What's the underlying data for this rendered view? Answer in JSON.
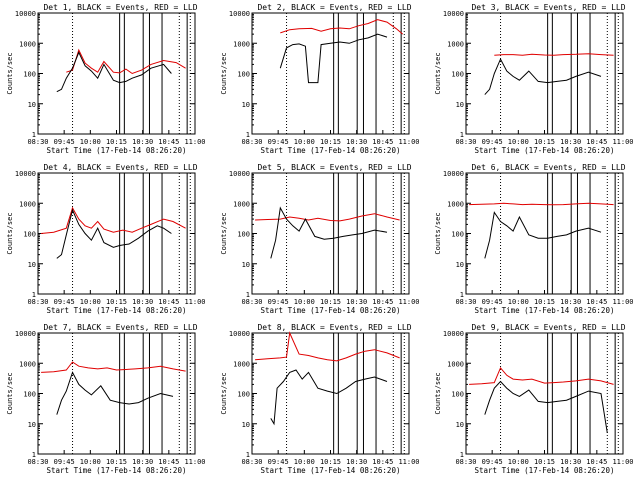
{
  "figure": {
    "ylabel": "Counts/sec",
    "xlabel": "Start Time (17-Feb-14 08:26:20)",
    "x_tick_labels": [
      "08:30",
      "09:45",
      "10:00",
      "10:15",
      "10:30",
      "10:45",
      "11:00"
    ],
    "y_tick_labels": [
      "1",
      "10",
      "100",
      "1000",
      "10000"
    ],
    "colors": {
      "events": "#000000",
      "lld": "#e00000",
      "frame": "#000000"
    }
  },
  "chart_data": [
    {
      "type": "line",
      "title": "Det 1, BLACK = Events, RED = LLD",
      "xlabel": "Start Time (17-Feb-14 08:26:20)",
      "ylabel": "Counts/sec",
      "ylim": [
        1,
        10000
      ],
      "log_y": true,
      "series": [
        {
          "x": [
            0.18,
            0.22,
            0.26,
            0.3,
            0.34,
            0.38,
            0.42,
            0.48,
            0.52,
            0.56,
            0.6,
            0.66,
            0.72,
            0.8,
            0.88,
            0.94
          ],
          "values": [
            110,
            130,
            600,
            220,
            150,
            110,
            250,
            110,
            105,
            140,
            100,
            130,
            200,
            270,
            230,
            150
          ]
        },
        {
          "x": [
            0.12,
            0.15,
            0.18,
            0.22,
            0.26,
            0.3,
            0.34,
            0.38,
            0.42,
            0.48,
            0.52,
            0.56,
            0.6,
            0.66,
            0.72,
            0.8,
            0.85
          ],
          "values": [
            25,
            30,
            70,
            150,
            500,
            180,
            120,
            70,
            200,
            60,
            50,
            55,
            70,
            90,
            150,
            200,
            100
          ]
        }
      ]
    },
    {
      "type": "line",
      "title": "Det 2, BLACK = Events, RED = LLD",
      "xlabel": "Start Time (17-Feb-14 08:26:20)",
      "ylabel": "Counts/sec",
      "ylim": [
        1,
        10000
      ],
      "log_y": true,
      "series": [
        {
          "x": [
            0.18,
            0.24,
            0.3,
            0.38,
            0.44,
            0.5,
            0.56,
            0.62,
            0.68,
            0.74,
            0.8,
            0.86,
            0.92,
            0.96
          ],
          "values": [
            2200,
            2800,
            3000,
            3100,
            2500,
            3000,
            3200,
            3000,
            3800,
            4500,
            6000,
            5000,
            3000,
            2000
          ]
        },
        {
          "x": [
            0.18,
            0.22,
            0.26,
            0.3,
            0.34,
            0.36,
            0.42,
            0.44,
            0.5,
            0.56,
            0.62,
            0.68,
            0.74,
            0.8,
            0.86
          ],
          "values": [
            150,
            700,
            900,
            950,
            800,
            50,
            50,
            900,
            1000,
            1100,
            1000,
            1300,
            1500,
            2000,
            1600
          ]
        }
      ]
    },
    {
      "type": "line",
      "title": "Det 3, BLACK = Events, RED = LLD",
      "xlabel": "Start Time (17-Feb-14 08:26:20)",
      "ylabel": "Counts/sec",
      "ylim": [
        1,
        10000
      ],
      "log_y": true,
      "series": [
        {
          "x": [
            0.18,
            0.24,
            0.3,
            0.36,
            0.42,
            0.5,
            0.56,
            0.62,
            0.7,
            0.78,
            0.86,
            0.94
          ],
          "values": [
            400,
            420,
            420,
            400,
            430,
            410,
            400,
            420,
            430,
            450,
            420,
            400
          ]
        },
        {
          "x": [
            0.12,
            0.15,
            0.18,
            0.22,
            0.26,
            0.3,
            0.34,
            0.4,
            0.46,
            0.52,
            0.58,
            0.64,
            0.7,
            0.78,
            0.86
          ],
          "values": [
            20,
            30,
            100,
            300,
            120,
            80,
            60,
            120,
            55,
            50,
            55,
            60,
            80,
            110,
            80
          ]
        }
      ]
    },
    {
      "type": "line",
      "title": "Det 4, BLACK = Events, RED = LLD",
      "xlabel": "Start Time (17-Feb-14 08:26:20)",
      "ylabel": "Counts/sec",
      "ylim": [
        1,
        10000
      ],
      "log_y": true,
      "series": [
        {
          "x": [
            0.02,
            0.1,
            0.18,
            0.22,
            0.26,
            0.3,
            0.34,
            0.38,
            0.42,
            0.48,
            0.54,
            0.6,
            0.66,
            0.72,
            0.8,
            0.86,
            0.94
          ],
          "values": [
            100,
            110,
            150,
            700,
            300,
            180,
            150,
            250,
            140,
            110,
            130,
            110,
            150,
            200,
            300,
            250,
            150
          ]
        },
        {
          "x": [
            0.12,
            0.15,
            0.18,
            0.22,
            0.26,
            0.3,
            0.34,
            0.38,
            0.42,
            0.48,
            0.52,
            0.58,
            0.64,
            0.7,
            0.76,
            0.8,
            0.85
          ],
          "values": [
            15,
            20,
            90,
            600,
            200,
            100,
            60,
            150,
            50,
            35,
            40,
            45,
            70,
            120,
            180,
            150,
            100
          ]
        }
      ]
    },
    {
      "type": "line",
      "title": "Det 5, BLACK = Events, RED = LLD",
      "xlabel": "Start Time (17-Feb-14 08:26:20)",
      "ylabel": "Counts/sec",
      "ylim": [
        1,
        10000
      ],
      "log_y": true,
      "series": [
        {
          "x": [
            0.02,
            0.1,
            0.18,
            0.24,
            0.3,
            0.36,
            0.42,
            0.5,
            0.56,
            0.62,
            0.7,
            0.78,
            0.86,
            0.94
          ],
          "values": [
            280,
            290,
            300,
            350,
            320,
            280,
            320,
            270,
            260,
            300,
            380,
            450,
            350,
            280
          ]
        },
        {
          "x": [
            0.12,
            0.15,
            0.18,
            0.22,
            0.26,
            0.3,
            0.34,
            0.4,
            0.46,
            0.52,
            0.58,
            0.64,
            0.7,
            0.78,
            0.86
          ],
          "values": [
            15,
            60,
            700,
            300,
            180,
            120,
            300,
            80,
            65,
            70,
            80,
            90,
            100,
            130,
            110
          ]
        }
      ]
    },
    {
      "type": "line",
      "title": "Det 6, BLACK = Events, RED = LLD",
      "xlabel": "Start Time (17-Feb-14 08:26:20)",
      "ylabel": "Counts/sec",
      "ylim": [
        1,
        10000
      ],
      "log_y": true,
      "series": [
        {
          "x": [
            0.02,
            0.1,
            0.18,
            0.24,
            0.3,
            0.36,
            0.42,
            0.5,
            0.56,
            0.62,
            0.7,
            0.78,
            0.86,
            0.94
          ],
          "values": [
            900,
            920,
            950,
            1000,
            950,
            900,
            920,
            900,
            890,
            900,
            950,
            1000,
            950,
            900
          ]
        },
        {
          "x": [
            0.12,
            0.15,
            0.18,
            0.22,
            0.26,
            0.3,
            0.34,
            0.4,
            0.46,
            0.52,
            0.58,
            0.64,
            0.7,
            0.78,
            0.86
          ],
          "values": [
            15,
            60,
            500,
            250,
            180,
            120,
            350,
            90,
            70,
            70,
            80,
            90,
            120,
            150,
            110
          ]
        }
      ]
    },
    {
      "type": "line",
      "title": "Det 7, BLACK = Events, RED = LLD",
      "xlabel": "Start Time (17-Feb-14 08:26:20)",
      "ylabel": "Counts/sec",
      "ylim": [
        1,
        10000
      ],
      "log_y": true,
      "series": [
        {
          "x": [
            0.02,
            0.1,
            0.18,
            0.22,
            0.26,
            0.32,
            0.38,
            0.44,
            0.5,
            0.56,
            0.62,
            0.7,
            0.78,
            0.86,
            0.94
          ],
          "values": [
            500,
            520,
            600,
            1100,
            800,
            700,
            650,
            700,
            600,
            620,
            650,
            700,
            800,
            650,
            550
          ]
        },
        {
          "x": [
            0.12,
            0.15,
            0.18,
            0.22,
            0.26,
            0.3,
            0.34,
            0.4,
            0.46,
            0.52,
            0.58,
            0.64,
            0.7,
            0.78,
            0.86
          ],
          "values": [
            20,
            60,
            120,
            500,
            200,
            130,
            90,
            180,
            60,
            50,
            45,
            50,
            70,
            100,
            80
          ]
        }
      ]
    },
    {
      "type": "line",
      "title": "Det 8, BLACK = Events, RED = LLD",
      "xlabel": "Start Time (17-Feb-14 08:26:20)",
      "ylabel": "Counts/sec",
      "ylim": [
        1,
        10000
      ],
      "log_y": true,
      "series": [
        {
          "x": [
            0.02,
            0.1,
            0.18,
            0.22,
            0.24,
            0.3,
            0.36,
            0.42,
            0.48,
            0.54,
            0.6,
            0.66,
            0.72,
            0.78,
            0.86,
            0.94
          ],
          "values": [
            1300,
            1400,
            1500,
            1600,
            10000,
            2000,
            1800,
            1500,
            1300,
            1200,
            1500,
            2000,
            2500,
            2800,
            2200,
            1500
          ]
        },
        {
          "x": [
            0.12,
            0.14,
            0.16,
            0.2,
            0.24,
            0.28,
            0.32,
            0.36,
            0.42,
            0.48,
            0.54,
            0.6,
            0.66,
            0.72,
            0.78,
            0.86
          ],
          "values": [
            15,
            10,
            150,
            250,
            500,
            600,
            300,
            500,
            150,
            120,
            100,
            150,
            250,
            300,
            350,
            250
          ]
        }
      ]
    },
    {
      "type": "line",
      "title": "Det 9, BLACK = Events, RED = LLD",
      "xlabel": "Start Time (17-Feb-14 08:26:20)",
      "ylabel": "Counts/sec",
      "ylim": [
        1,
        10000
      ],
      "log_y": true,
      "series": [
        {
          "x": [
            0.02,
            0.1,
            0.18,
            0.22,
            0.26,
            0.3,
            0.36,
            0.42,
            0.5,
            0.56,
            0.62,
            0.7,
            0.78,
            0.86,
            0.94
          ],
          "values": [
            200,
            210,
            230,
            700,
            400,
            300,
            280,
            300,
            220,
            230,
            240,
            260,
            300,
            260,
            200
          ]
        },
        {
          "x": [
            0.12,
            0.15,
            0.18,
            0.22,
            0.26,
            0.3,
            0.34,
            0.4,
            0.46,
            0.52,
            0.58,
            0.64,
            0.7,
            0.78,
            0.86,
            0.9
          ],
          "values": [
            20,
            60,
            150,
            250,
            150,
            100,
            80,
            130,
            55,
            50,
            55,
            60,
            80,
            120,
            100,
            5
          ]
        }
      ]
    }
  ]
}
